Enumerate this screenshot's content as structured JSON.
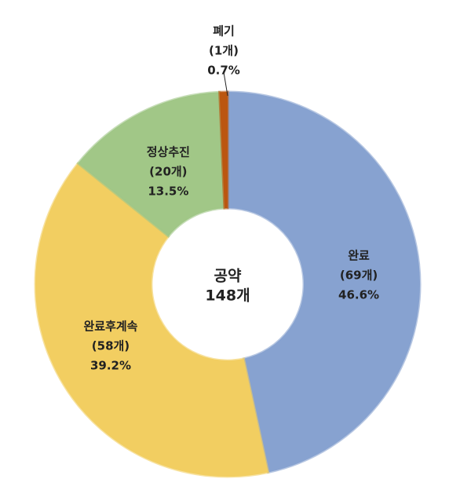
{
  "chart_data": {
    "type": "donut",
    "categories": [
      "완료",
      "완료후계속",
      "정상추진",
      "폐기"
    ],
    "values": [
      69,
      58,
      20,
      1
    ],
    "value_labels": [
      "(69개)",
      "(58개)",
      "(20개)",
      "(1개)"
    ],
    "percents": [
      46.6,
      39.2,
      13.5,
      0.7
    ],
    "percent_labels": [
      "46.6%",
      "39.2%",
      "13.5%",
      "0.7%"
    ],
    "colors": [
      "#8eaadb",
      "#ffd966",
      "#a9d18e",
      "#c55a11"
    ],
    "center_title": "공약",
    "center_total": {
      "value": 148,
      "label": "148개"
    }
  }
}
